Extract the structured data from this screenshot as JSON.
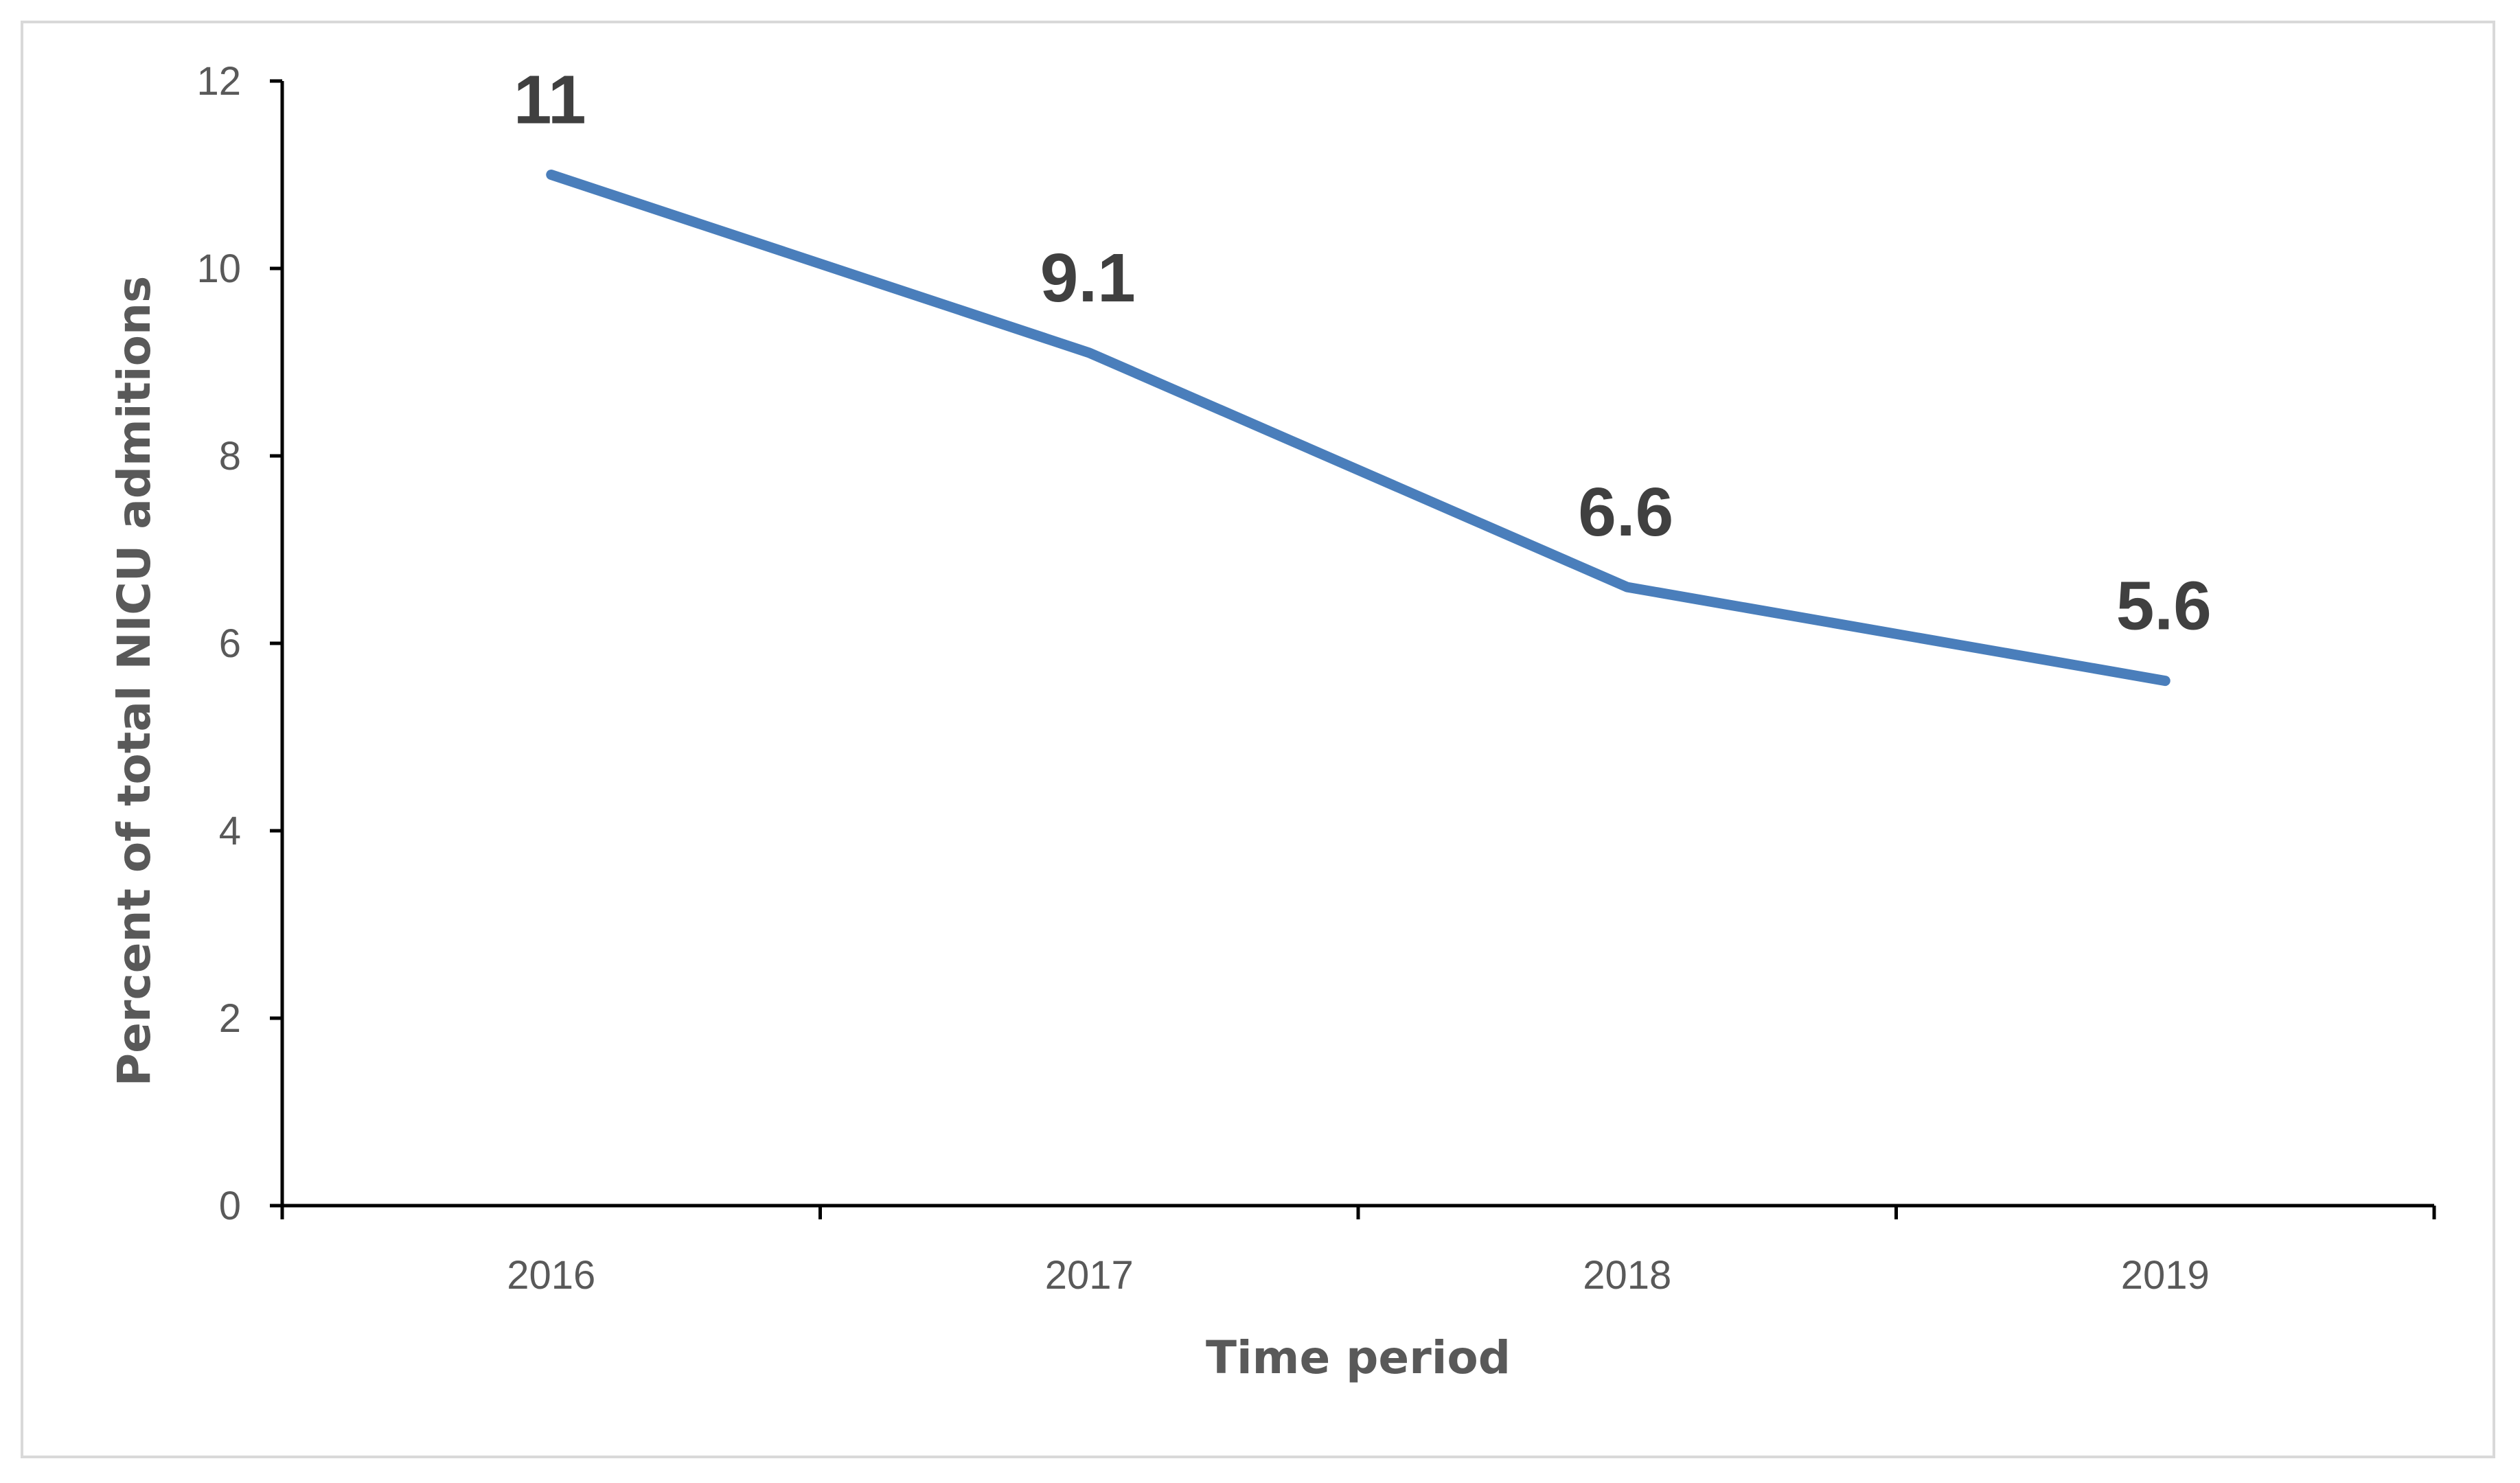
{
  "chart_data": {
    "type": "line",
    "categories": [
      "2016",
      "2017",
      "2018",
      "2019"
    ],
    "series": [
      {
        "values": [
          11,
          9.1,
          6.6,
          5.6
        ],
        "color": "#4a7ebb"
      }
    ],
    "data_labels": [
      "11",
      "9.1",
      "6.6",
      "5.6"
    ],
    "xlabel": "Time period",
    "ylabel": "Percent of total NICU admitions",
    "ylim": [
      0,
      12
    ],
    "yticks": [
      0,
      2,
      4,
      6,
      8,
      10,
      12
    ],
    "yticks_labels": [
      "0",
      "2",
      "4",
      "6",
      "8",
      "10",
      "12"
    ],
    "grid": false,
    "legend": "none",
    "axis_color": "#000000",
    "text_color": "#595959",
    "data_label_color": "#404040"
  }
}
